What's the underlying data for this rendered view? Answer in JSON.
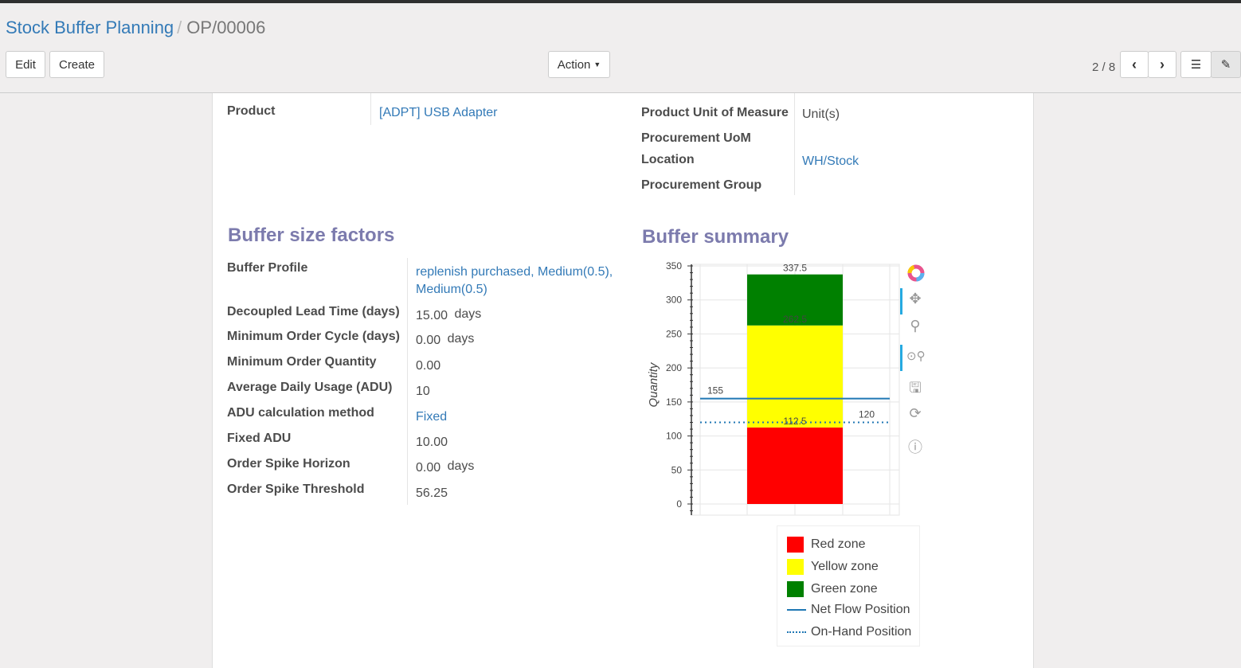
{
  "breadcrumb": {
    "parent": "Stock Buffer Planning",
    "current": "OP/00006"
  },
  "buttons": {
    "edit": "Edit",
    "create": "Create",
    "action": "Action"
  },
  "pager": {
    "text": "2 / 8"
  },
  "fields_left": [
    {
      "label": "Product",
      "value": "[ADPT] USB Adapter",
      "link": true
    }
  ],
  "fields_right": [
    {
      "label": "Product Unit of Measure",
      "value": "Unit(s)"
    },
    {
      "label": "Procurement UoM",
      "value": ""
    },
    {
      "label": "Location",
      "value": "WH/Stock"
    },
    {
      "label": "Procurement Group",
      "value": ""
    }
  ],
  "buffer_factors": {
    "title": "Buffer size factors",
    "rows": [
      {
        "label": "Buffer Profile",
        "value": "replenish purchased, Medium(0.5),",
        "value2": "Medium(0.5)"
      },
      {
        "label": "Decoupled Lead Time (days)",
        "value": "15.00",
        "unit": "days"
      },
      {
        "label": "Minimum Order Cycle (days)",
        "value": "0.00",
        "unit": "days"
      },
      {
        "label": "Minimum Order Quantity",
        "value": "0.00"
      },
      {
        "label": "Average Daily Usage (ADU)",
        "value": "10"
      },
      {
        "label": "ADU calculation method",
        "value": "Fixed"
      },
      {
        "label": "Fixed ADU",
        "value": "10.00"
      },
      {
        "label": "Order Spike Horizon",
        "value": "0.00",
        "unit": "days"
      },
      {
        "label": "Order Spike Threshold",
        "value": "56.25"
      }
    ]
  },
  "buffer_summary": {
    "title": "Buffer summary"
  },
  "chart_data": {
    "type": "bar",
    "stacked": true,
    "ylabel": "Quantity",
    "ylim": [
      0,
      350
    ],
    "yticks": [
      0,
      50,
      100,
      150,
      200,
      250,
      300,
      350
    ],
    "grid": true,
    "series": [
      {
        "name": "Red zone",
        "from": 0,
        "to": 112.5,
        "color": "#ff0000"
      },
      {
        "name": "Yellow zone",
        "from": 112.5,
        "to": 262.5,
        "color": "#ffff00"
      },
      {
        "name": "Green zone",
        "from": 262.5,
        "to": 337.5,
        "color": "#008000"
      }
    ],
    "bar_labels": [
      "112.5",
      "262.5",
      "337.5"
    ],
    "lines": [
      {
        "name": "Net Flow Position",
        "value": 155,
        "label": "155",
        "style": "solid",
        "color": "#1f77b4"
      },
      {
        "name": "On-Hand Position",
        "value": 120,
        "label": "120",
        "style": "dotted",
        "color": "#1f77b4"
      }
    ],
    "legend": "bottom-right"
  }
}
